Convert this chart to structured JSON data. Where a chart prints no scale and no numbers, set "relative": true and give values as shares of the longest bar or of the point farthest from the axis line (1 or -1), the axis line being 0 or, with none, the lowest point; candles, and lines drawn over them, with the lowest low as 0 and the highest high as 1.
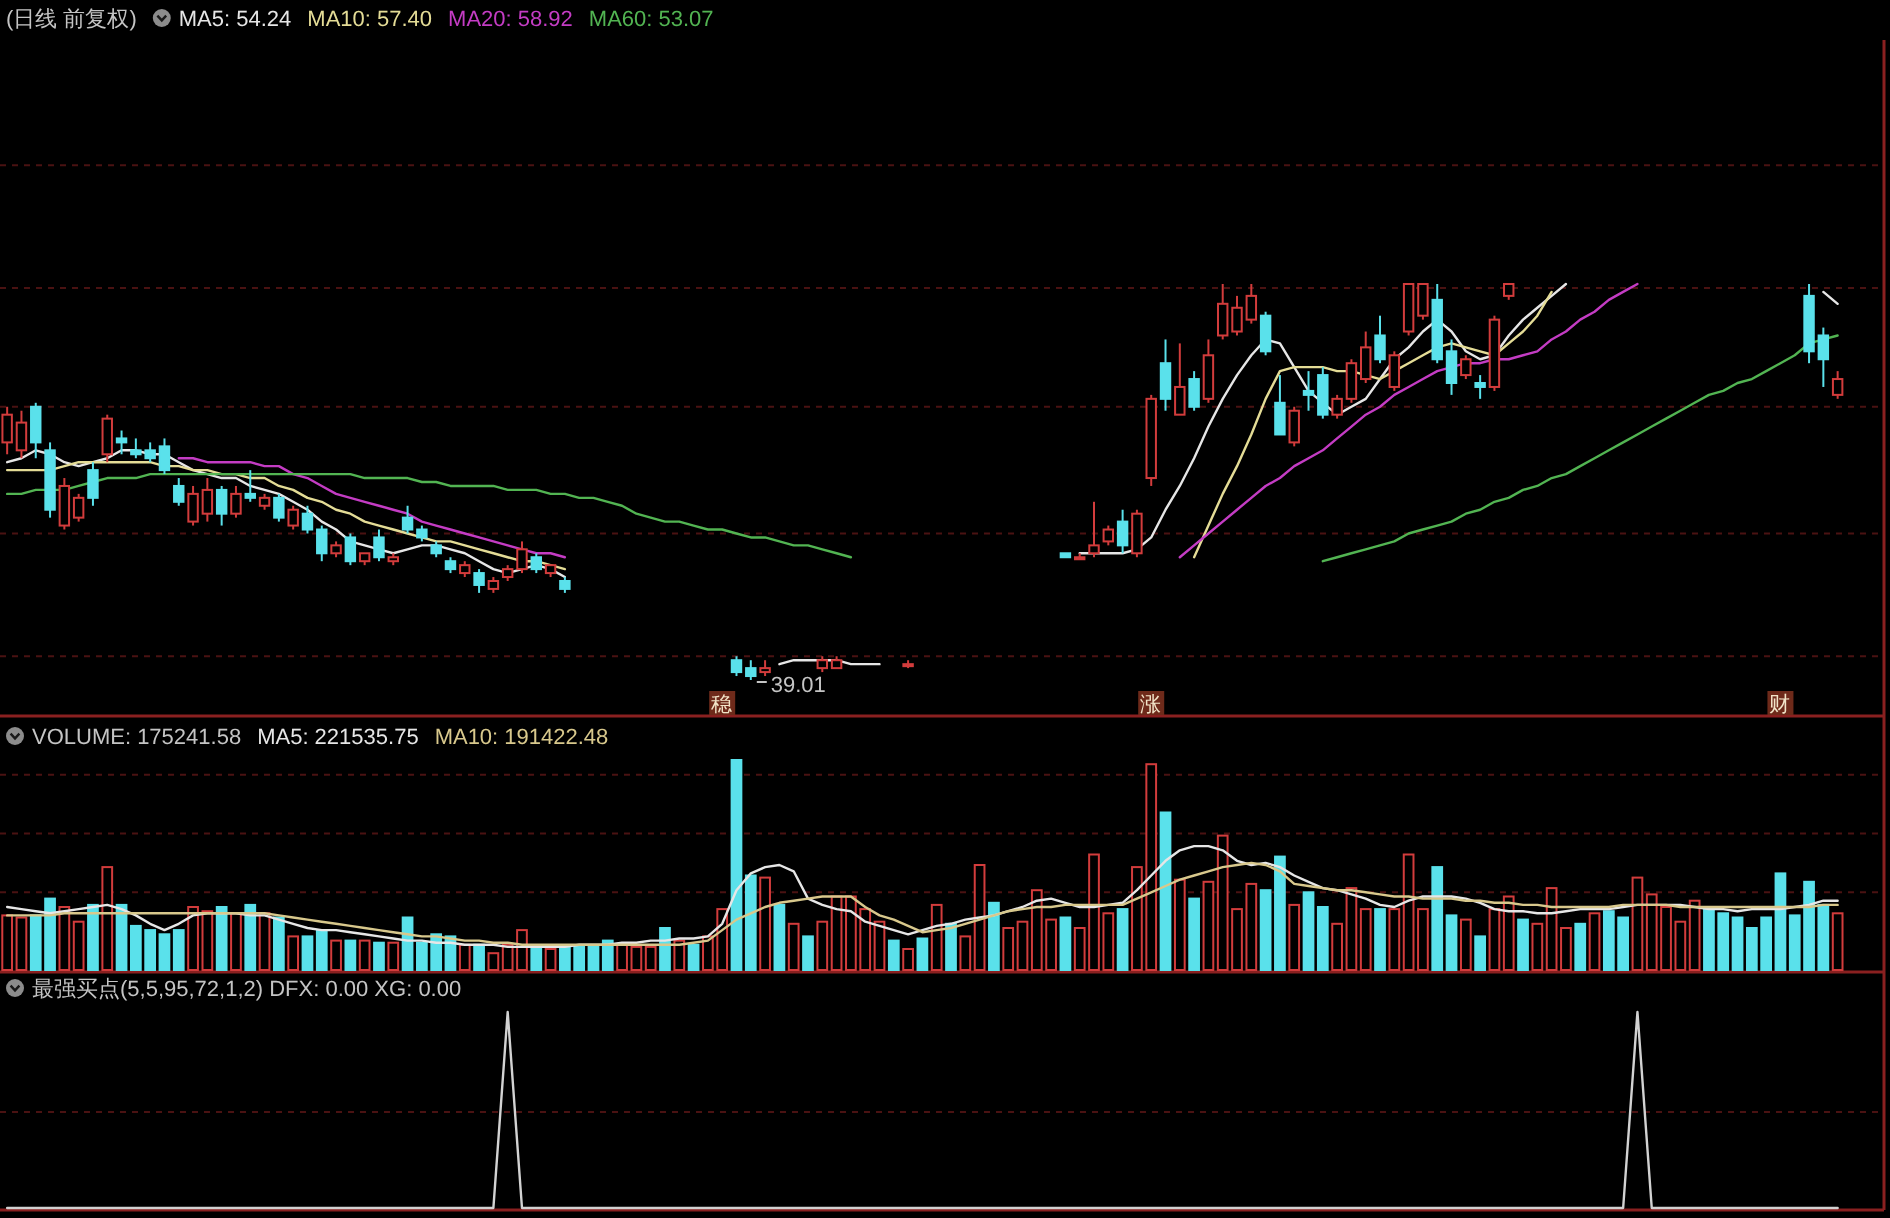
{
  "chart_data": [
    {
      "type": "candlestick",
      "title": "(日线 前复权)",
      "relative": true,
      "legend": "top left",
      "categories": [
        null,
        null,
        null,
        null,
        null,
        null,
        null,
        null,
        null,
        null,
        null,
        null,
        null,
        null,
        null,
        null,
        null,
        null,
        null,
        null,
        null,
        null,
        null,
        null,
        null,
        null,
        null,
        null,
        null,
        null,
        null,
        null,
        null,
        null,
        null,
        null,
        null,
        null,
        null,
        null,
        null,
        null,
        null,
        null,
        null,
        null,
        null,
        null,
        null,
        null,
        "稳",
        null,
        null,
        null,
        null,
        null,
        null,
        null,
        null,
        null,
        null,
        null,
        null,
        null,
        null,
        null,
        null,
        null,
        null,
        null,
        null,
        null,
        null,
        null,
        null,
        null,
        null,
        null,
        null,
        null,
        "涨",
        null,
        null,
        null,
        null,
        null,
        null,
        null,
        null,
        null,
        null,
        null,
        null,
        null,
        null,
        null,
        null,
        null,
        null,
        null,
        null,
        null,
        null,
        null,
        null,
        null,
        null,
        null,
        null,
        null,
        null,
        null,
        null,
        null,
        null,
        null,
        null,
        null,
        null,
        null,
        null,
        null,
        null,
        null,
        "财",
        null,
        null,
        null,
        null
      ],
      "ohlc": [
        [
          0.6,
          0.69,
          0.57,
          0.67
        ],
        [
          0.58,
          0.68,
          0.56,
          0.65
        ],
        [
          0.69,
          0.7,
          0.56,
          0.6
        ],
        [
          0.58,
          0.6,
          0.41,
          0.43
        ],
        [
          0.39,
          0.51,
          0.38,
          0.49
        ],
        [
          0.41,
          0.47,
          0.4,
          0.46
        ],
        [
          0.53,
          0.55,
          0.44,
          0.46
        ],
        [
          0.57,
          0.67,
          0.55,
          0.66
        ],
        [
          0.61,
          0.63,
          0.57,
          0.6
        ],
        [
          0.58,
          0.61,
          0.56,
          0.57
        ],
        [
          0.58,
          0.6,
          0.55,
          0.56
        ],
        [
          0.59,
          0.61,
          0.52,
          0.53
        ],
        [
          0.49,
          0.51,
          0.44,
          0.45
        ],
        [
          0.4,
          0.49,
          0.39,
          0.47
        ],
        [
          0.42,
          0.51,
          0.4,
          0.48
        ],
        [
          0.48,
          0.49,
          0.39,
          0.42
        ],
        [
          0.42,
          0.49,
          0.41,
          0.47
        ],
        [
          0.47,
          0.53,
          0.45,
          0.46
        ],
        [
          0.44,
          0.47,
          0.43,
          0.46
        ],
        [
          0.46,
          0.47,
          0.4,
          0.41
        ],
        [
          0.39,
          0.44,
          0.38,
          0.43
        ],
        [
          0.42,
          0.44,
          0.37,
          0.38
        ],
        [
          0.38,
          0.39,
          0.3,
          0.32
        ],
        [
          0.32,
          0.35,
          0.31,
          0.34
        ],
        [
          0.36,
          0.37,
          0.29,
          0.3
        ],
        [
          0.3,
          0.32,
          0.29,
          0.32
        ],
        [
          0.36,
          0.38,
          0.3,
          0.31
        ],
        [
          0.3,
          0.32,
          0.29,
          0.31
        ],
        [
          0.41,
          0.44,
          0.37,
          0.38
        ],
        [
          0.38,
          0.39,
          0.35,
          0.36
        ],
        [
          0.34,
          0.35,
          0.31,
          0.32
        ],
        [
          0.3,
          0.31,
          0.27,
          0.28
        ],
        [
          0.27,
          0.3,
          0.26,
          0.29
        ],
        [
          0.27,
          0.28,
          0.22,
          0.24
        ],
        [
          0.23,
          0.26,
          0.22,
          0.25
        ],
        [
          0.26,
          0.29,
          0.25,
          0.28
        ],
        [
          0.28,
          0.35,
          0.27,
          0.33
        ],
        [
          0.31,
          0.32,
          0.27,
          0.28
        ],
        [
          0.27,
          0.29,
          0.26,
          0.29
        ],
        [
          0.25,
          0.26,
          0.22,
          0.23
        ],
        null,
        null,
        null,
        null,
        null,
        null,
        null,
        null,
        null,
        null,
        null,
        [
          0.05,
          0.06,
          0.01,
          0.02
        ],
        [
          0.03,
          0.05,
          0,
          0.01
        ],
        [
          0.02,
          0.05,
          0.01,
          0.03
        ],
        null,
        null,
        null,
        [
          0.03,
          0.06,
          0.02,
          0.05
        ],
        [
          0.03,
          0.06,
          0.03,
          0.05
        ],
        null,
        null,
        null,
        null,
        [
          0.04,
          0.05,
          0.03,
          0.04
        ],
        null,
        null,
        null,
        null,
        null,
        null,
        null,
        null,
        null,
        null,
        [
          0.32,
          0.32,
          0.31,
          0.31
        ],
        [
          0.31,
          0.32,
          0.31,
          0.31
        ],
        [
          0.32,
          0.45,
          0.31,
          0.34
        ],
        [
          0.35,
          0.39,
          0.34,
          0.38
        ],
        [
          0.4,
          0.43,
          0.32,
          0.34
        ],
        [
          0.32,
          0.43,
          0.31,
          0.42
        ],
        [
          0.51,
          0.72,
          0.49,
          0.71
        ],
        [
          0.8,
          0.86,
          0.68,
          0.71
        ],
        [
          0.67,
          0.85,
          0.67,
          0.74
        ],
        [
          0.76,
          0.78,
          0.68,
          0.69
        ],
        [
          0.71,
          0.86,
          0.7,
          0.82
        ],
        [
          0.87,
          1.0,
          0.86,
          0.95
        ],
        [
          0.88,
          0.97,
          0.87,
          0.94
        ],
        [
          0.91,
          1.0,
          0.9,
          0.97
        ],
        [
          0.92,
          0.93,
          0.82,
          0.83
        ],
        [
          0.7,
          0.77,
          0.62,
          0.62
        ],
        [
          0.6,
          0.69,
          0.59,
          0.68
        ],
        [
          0.73,
          0.78,
          0.68,
          0.72
        ],
        [
          0.77,
          0.79,
          0.66,
          0.67
        ],
        [
          0.67,
          0.72,
          0.66,
          0.71
        ],
        [
          0.71,
          0.81,
          0.7,
          0.8
        ],
        [
          0.76,
          0.88,
          0.75,
          0.84
        ],
        [
          0.87,
          0.92,
          0.8,
          0.81
        ],
        [
          0.74,
          0.83,
          0.73,
          0.82
        ],
        [
          0.88,
          1.0,
          0.87,
          1.0
        ],
        [
          0.92,
          1.0,
          0.91,
          1.0
        ],
        [
          0.96,
          1.0,
          0.8,
          0.81
        ],
        [
          0.83,
          0.86,
          0.72,
          0.75
        ],
        [
          0.77,
          0.82,
          0.76,
          0.81
        ],
        [
          0.75,
          0.77,
          0.71,
          0.74
        ],
        [
          0.74,
          0.92,
          0.73,
          0.91
        ],
        [
          0.97,
          1.0,
          0.96,
          1.0
        ],
        null,
        null,
        null,
        null,
        null,
        null,
        null,
        null,
        null,
        null,
        null,
        null,
        null,
        null,
        null,
        null,
        null,
        null,
        null,
        null,
        [
          0.97,
          1.0,
          0.8,
          0.83
        ],
        [
          0.87,
          0.89,
          0.74,
          0.81
        ],
        [
          0.72,
          0.78,
          0.71,
          0.76
        ]
      ],
      "colors": [
        "#d23c3c",
        "#d23c3c",
        "#5ae1eb",
        "#5ae1eb",
        "#d23c3c",
        "#d23c3c",
        "#5ae1eb",
        "#d23c3c",
        "#5ae1eb",
        "#5ae1eb",
        "#5ae1eb",
        "#5ae1eb",
        "#5ae1eb",
        "#d23c3c",
        "#d23c3c",
        "#5ae1eb",
        "#d23c3c",
        "#5ae1eb",
        "#d23c3c",
        "#5ae1eb",
        "#d23c3c",
        "#5ae1eb",
        "#5ae1eb",
        "#d23c3c",
        "#5ae1eb",
        "#d23c3c",
        "#5ae1eb",
        "#d23c3c",
        "#5ae1eb",
        "#5ae1eb",
        "#5ae1eb",
        "#5ae1eb",
        "#d23c3c",
        "#5ae1eb",
        "#d23c3c",
        "#d23c3c",
        "#d23c3c",
        "#5ae1eb",
        "#d23c3c",
        "#5ae1eb",
        null,
        null,
        null,
        null,
        null,
        null,
        null,
        null,
        null,
        null,
        null,
        "#5ae1eb",
        "#5ae1eb",
        "#d23c3c",
        null,
        null,
        null,
        "#d23c3c",
        "#d23c3c",
        null,
        null,
        null,
        null,
        "#d23c3c",
        null,
        null,
        null,
        null,
        null,
        null,
        null,
        null,
        null,
        null,
        "#5ae1eb",
        "#d23c3c",
        "#d23c3c",
        "#d23c3c",
        "#5ae1eb",
        "#d23c3c",
        "#d23c3c",
        "#5ae1eb",
        "#d23c3c",
        "#5ae1eb",
        "#d23c3c",
        "#d23c3c",
        "#d23c3c",
        "#d23c3c",
        "#5ae1eb",
        "#5ae1eb",
        "#d23c3c",
        "#5ae1eb",
        "#5ae1eb",
        "#d23c3c",
        "#d23c3c",
        "#d23c3c",
        "#5ae1eb",
        "#d23c3c",
        "#d23c3c",
        "#d23c3c",
        "#5ae1eb",
        "#5ae1eb",
        "#d23c3c",
        "#5ae1eb",
        "#d23c3c",
        "#d23c3c",
        null,
        null,
        null,
        null,
        null,
        null,
        null,
        null,
        null,
        null,
        null,
        null,
        null,
        null,
        null,
        null,
        null,
        null,
        null,
        null,
        "#5ae1eb",
        "#5ae1eb",
        "#d23c3c"
      ],
      "series": [
        {
          "name": "MA5: 54.24",
          "type": "line",
          "color": "#e6e6e6",
          "values": [
            0.55,
            0.56,
            0.58,
            0.57,
            0.55,
            0.54,
            0.55,
            0.56,
            0.58,
            0.58,
            0.57,
            0.57,
            0.55,
            0.53,
            0.52,
            0.51,
            0.51,
            0.49,
            0.48,
            0.47,
            0.45,
            0.43,
            0.4,
            0.38,
            0.35,
            0.34,
            0.33,
            0.32,
            0.33,
            0.34,
            0.34,
            0.33,
            0.32,
            0.3,
            0.28,
            0.27,
            0.28,
            0.29,
            0.28,
            0.26,
            null,
            null,
            null,
            null,
            null,
            null,
            null,
            null,
            null,
            null,
            null,
            null,
            null,
            null,
            0.04,
            0.05,
            0.05,
            0.05,
            0.05,
            0.04,
            0.04,
            0.04,
            null,
            null,
            null,
            null,
            null,
            null,
            null,
            null,
            null,
            null,
            null,
            null,
            null,
            0.32,
            0.32,
            0.32,
            0.32,
            0.33,
            0.36,
            0.43,
            0.49,
            0.56,
            0.64,
            0.71,
            0.77,
            0.82,
            0.86,
            0.85,
            0.79,
            0.73,
            0.7,
            0.67,
            0.69,
            0.71,
            0.76,
            0.81,
            0.84,
            0.88,
            0.91,
            0.88,
            0.83,
            0.81,
            0.82,
            0.87,
            0.91,
            0.94,
            0.97,
            1.0,
            null,
            null,
            null,
            null,
            null,
            null,
            null,
            null,
            null,
            null,
            null,
            null,
            null,
            null,
            null,
            null,
            null,
            0.98,
            0.95
          ]
        },
        {
          "name": "MA10: 57.40",
          "type": "line",
          "color": "#e4dc96",
          "values": [
            0.53,
            0.53,
            0.53,
            0.53,
            0.54,
            0.55,
            0.55,
            0.55,
            0.55,
            0.55,
            0.55,
            0.54,
            0.54,
            0.53,
            0.53,
            0.52,
            0.52,
            0.51,
            0.51,
            0.49,
            0.48,
            0.46,
            0.45,
            0.43,
            0.42,
            0.4,
            0.39,
            0.38,
            0.37,
            0.36,
            0.35,
            0.35,
            0.34,
            0.33,
            0.32,
            0.31,
            0.3,
            0.3,
            0.29,
            0.28,
            null,
            null,
            null,
            null,
            null,
            null,
            null,
            null,
            null,
            null,
            null,
            null,
            null,
            null,
            null,
            null,
            null,
            null,
            null,
            null,
            null,
            null,
            null,
            null,
            null,
            null,
            null,
            null,
            null,
            null,
            null,
            null,
            null,
            null,
            null,
            null,
            null,
            null,
            null,
            null,
            null,
            null,
            null,
            0.31,
            0.39,
            0.47,
            0.54,
            0.62,
            0.71,
            0.78,
            0.79,
            0.79,
            0.79,
            0.78,
            0.78,
            0.77,
            0.76,
            0.78,
            0.8,
            0.82,
            0.84,
            0.85,
            0.84,
            0.83,
            0.82,
            0.85,
            0.88,
            0.92,
            0.98,
            null,
            null,
            null,
            null,
            null,
            null,
            null,
            null,
            null,
            null,
            null,
            null,
            null,
            null,
            null,
            null,
            null,
            null,
            null,
            null
          ]
        },
        {
          "name": "MA20: 58.92",
          "type": "line",
          "color": "#c43cc4",
          "values": [
            null,
            null,
            null,
            null,
            null,
            null,
            null,
            null,
            null,
            null,
            null,
            null,
            0.56,
            0.56,
            0.55,
            0.55,
            0.55,
            0.55,
            0.54,
            0.54,
            0.52,
            0.51,
            0.49,
            0.47,
            0.46,
            0.45,
            0.44,
            0.43,
            0.42,
            0.4,
            0.39,
            0.38,
            0.37,
            0.36,
            0.35,
            0.34,
            0.33,
            0.32,
            0.32,
            0.31,
            null,
            null,
            null,
            null,
            null,
            null,
            null,
            null,
            null,
            null,
            null,
            null,
            null,
            null,
            null,
            null,
            null,
            null,
            null,
            null,
            null,
            null,
            null,
            null,
            null,
            null,
            null,
            null,
            null,
            null,
            null,
            null,
            null,
            null,
            null,
            null,
            null,
            null,
            null,
            null,
            null,
            null,
            0.31,
            0.34,
            0.37,
            0.4,
            0.43,
            0.46,
            0.49,
            0.51,
            0.54,
            0.56,
            0.58,
            0.61,
            0.64,
            0.67,
            0.69,
            0.72,
            0.74,
            0.76,
            0.78,
            0.79,
            0.8,
            0.8,
            0.81,
            0.81,
            0.82,
            0.83,
            0.86,
            0.88,
            0.91,
            0.93,
            0.96,
            0.98,
            1.0,
            null,
            null,
            null,
            null,
            null,
            null,
            null,
            null,
            null,
            null,
            null,
            null,
            null,
            null
          ]
        },
        {
          "name": "MA60: 53.07",
          "type": "line",
          "color": "#52b452",
          "values": [
            0.47,
            0.47,
            0.48,
            0.48,
            0.48,
            0.49,
            0.5,
            0.51,
            0.51,
            0.51,
            0.52,
            0.52,
            0.52,
            0.52,
            0.52,
            0.52,
            0.52,
            0.52,
            0.52,
            0.52,
            0.52,
            0.52,
            0.52,
            0.52,
            0.52,
            0.51,
            0.51,
            0.51,
            0.51,
            0.5,
            0.5,
            0.49,
            0.49,
            0.49,
            0.49,
            0.48,
            0.48,
            0.48,
            0.47,
            0.47,
            0.46,
            0.46,
            0.45,
            0.44,
            0.42,
            0.41,
            0.4,
            0.4,
            0.39,
            0.38,
            0.38,
            0.37,
            0.36,
            0.36,
            0.35,
            0.34,
            0.34,
            0.33,
            0.32,
            0.31,
            null,
            null,
            null,
            null,
            null,
            null,
            null,
            null,
            null,
            null,
            null,
            null,
            null,
            null,
            null,
            null,
            null,
            null,
            null,
            null,
            null,
            null,
            null,
            null,
            null,
            null,
            null,
            null,
            null,
            null,
            null,
            null,
            0.3,
            0.31,
            0.32,
            0.33,
            0.34,
            0.35,
            0.37,
            0.38,
            0.39,
            0.4,
            0.42,
            0.43,
            0.45,
            0.46,
            0.48,
            0.49,
            0.51,
            0.52,
            0.54,
            0.56,
            0.58,
            0.6,
            0.62,
            0.64,
            0.66,
            0.68,
            0.7,
            0.72,
            0.73,
            0.75,
            0.76,
            0.78,
            0.8,
            0.82,
            0.85,
            0.86,
            0.87
          ]
        }
      ],
      "ref_lines": [
        {
          "axis": "y",
          "value": 1.3,
          "color": "#4a1212",
          "line_style": "dashed"
        },
        {
          "axis": "y",
          "value": 0.99,
          "color": "#4a1212",
          "line_style": "dashed"
        },
        {
          "axis": "y",
          "value": 0.69,
          "color": "#4a1212",
          "line_style": "dashed"
        },
        {
          "axis": "y",
          "value": 0.37,
          "color": "#4a1212",
          "line_style": "dashed"
        },
        {
          "axis": "y",
          "value": 0.06,
          "color": "#4a1212",
          "line_style": "dashed"
        }
      ],
      "annotations": [
        "39.01"
      ]
    },
    {
      "type": "bar",
      "title": "VOLUME: 175241.58",
      "relative": true,
      "legend": "top left",
      "categories": [
        null,
        null,
        null,
        null,
        null,
        null,
        null,
        null,
        null,
        null,
        null,
        null,
        null,
        null,
        null,
        null,
        null,
        null,
        null,
        null,
        null,
        null,
        null,
        null,
        null,
        null,
        null,
        null,
        null,
        null,
        null,
        null,
        null,
        null,
        null,
        null,
        null,
        null,
        null,
        null,
        null,
        null,
        null,
        null,
        null,
        null,
        null,
        null,
        null,
        null,
        null,
        null,
        null,
        null,
        null,
        null,
        null,
        null,
        null,
        null,
        null,
        null,
        null,
        null,
        null,
        null,
        null,
        null,
        null,
        null,
        null,
        null,
        null,
        null,
        null,
        null,
        null,
        null,
        null,
        null,
        null,
        null,
        null,
        null,
        null,
        null,
        null,
        null,
        null,
        null,
        null,
        null,
        null,
        null,
        null,
        null,
        null,
        null,
        null,
        null,
        null,
        null,
        null,
        null,
        null,
        null,
        null,
        null,
        null,
        null,
        null,
        null,
        null,
        null,
        null,
        null,
        null,
        null,
        null,
        null,
        null,
        null,
        null,
        null,
        null,
        null,
        null,
        null,
        null
      ],
      "ref_lines": [
        {
          "axis": "y",
          "value": 0.93,
          "color": "#4a1212",
          "line_style": "dashed"
        },
        {
          "axis": "y",
          "value": 0.65,
          "color": "#4a1212",
          "line_style": "dashed"
        },
        {
          "axis": "y",
          "value": 0.37,
          "color": "#4a1212",
          "line_style": "dashed"
        }
      ],
      "series": [
        {
          "values": [
            0.26,
            0.25,
            0.26,
            0.34,
            0.3,
            0.23,
            0.31,
            0.49,
            0.31,
            0.21,
            0.19,
            0.17,
            0.19,
            0.3,
            0.28,
            0.3,
            0.27,
            0.31,
            0.27,
            0.25,
            0.16,
            0.16,
            0.19,
            0.14,
            0.14,
            0.14,
            0.13,
            0.13,
            0.25,
            0.13,
            0.17,
            0.16,
            0.12,
            0.12,
            0.08,
            0.12,
            0.19,
            0.1,
            0.1,
            0.11,
            0.11,
            0.11,
            0.14,
            0.12,
            0.11,
            0.11,
            0.2,
            0.14,
            0.12,
            0.16,
            0.29,
            1,
            0.45,
            0.44,
            0.31,
            0.22,
            0.16,
            0.23,
            0.35,
            0.35,
            0.29,
            0.23,
            0.14,
            0.1,
            0.15,
            0.31,
            0.22,
            0.16,
            0.5,
            0.32,
            0.2,
            0.23,
            0.38,
            0.24,
            0.25,
            0.2,
            0.55,
            0.27,
            0.29,
            0.49,
            0.98,
            0.75,
            0.43,
            0.34,
            0.42,
            0.64,
            0.29,
            0.41,
            0.38,
            0.54,
            0.31,
            0.37,
            0.3,
            0.22,
            0.39,
            0.29,
            0.29,
            0.29,
            0.55,
            0.29,
            0.49,
            0.26,
            0.24,
            0.16,
            0.29,
            0.35,
            0.24,
            0.22,
            0.39,
            0.2,
            0.22,
            0.27,
            0.28,
            0.25,
            0.44,
            0.36,
            0.3,
            0.23,
            0.33,
            0.3,
            0.27,
            0.25,
            0.2,
            0.25,
            0.46,
            0.26,
            0.42,
            0.31,
            0.27
          ],
          "colors": [
            "#d23c3c",
            "#d23c3c",
            "#5ae1eb",
            "#5ae1eb",
            "#d23c3c",
            "#d23c3c",
            "#5ae1eb",
            "#d23c3c",
            "#5ae1eb",
            "#5ae1eb",
            "#5ae1eb",
            "#5ae1eb",
            "#5ae1eb",
            "#d23c3c",
            "#d23c3c",
            "#5ae1eb",
            "#d23c3c",
            "#5ae1eb",
            "#d23c3c",
            "#5ae1eb",
            "#d23c3c",
            "#5ae1eb",
            "#5ae1eb",
            "#d23c3c",
            "#5ae1eb",
            "#d23c3c",
            "#5ae1eb",
            "#d23c3c",
            "#5ae1eb",
            "#5ae1eb",
            "#5ae1eb",
            "#5ae1eb",
            "#d23c3c",
            "#5ae1eb",
            "#d23c3c",
            "#d23c3c",
            "#d23c3c",
            "#5ae1eb",
            "#d23c3c",
            "#5ae1eb",
            "#5ae1eb",
            "#5ae1eb",
            "#5ae1eb",
            "#d23c3c",
            "#d23c3c",
            "#d23c3c",
            "#5ae1eb",
            "#d23c3c",
            "#5ae1eb",
            "#d23c3c",
            "#d23c3c",
            "#5ae1eb",
            "#5ae1eb",
            "#d23c3c",
            "#5ae1eb",
            "#d23c3c",
            "#5ae1eb",
            "#d23c3c",
            "#d23c3c",
            "#d23c3c",
            "#d23c3c",
            "#d23c3c",
            "#5ae1eb",
            "#d23c3c",
            "#5ae1eb",
            "#d23c3c",
            "#5ae1eb",
            "#d23c3c",
            "#d23c3c",
            "#5ae1eb",
            "#d23c3c",
            "#d23c3c",
            "#d23c3c",
            "#d23c3c",
            "#5ae1eb",
            "#d23c3c",
            "#d23c3c",
            "#d23c3c",
            "#5ae1eb",
            "#d23c3c",
            "#d23c3c",
            "#5ae1eb",
            "#d23c3c",
            "#5ae1eb",
            "#d23c3c",
            "#d23c3c",
            "#d23c3c",
            "#d23c3c",
            "#5ae1eb",
            "#5ae1eb",
            "#d23c3c",
            "#5ae1eb",
            "#5ae1eb",
            "#d23c3c",
            "#d23c3c",
            "#d23c3c",
            "#5ae1eb",
            "#d23c3c",
            "#d23c3c",
            "#d23c3c",
            "#5ae1eb",
            "#5ae1eb",
            "#d23c3c",
            "#5ae1eb",
            "#d23c3c",
            "#d23c3c",
            "#5ae1eb",
            "#d23c3c",
            "#d23c3c",
            "#d23c3c",
            "#5ae1eb",
            "#d23c3c",
            "#5ae1eb",
            "#5ae1eb",
            "#d23c3c",
            "#d23c3c",
            "#d23c3c",
            "#d23c3c",
            "#d23c3c",
            "#5ae1eb",
            "#5ae1eb",
            "#5ae1eb",
            "#5ae1eb",
            "#5ae1eb",
            "#5ae1eb",
            "#5ae1eb",
            "#5ae1eb",
            "#5ae1eb",
            "#d23c3c"
          ]
        },
        {
          "name": "MA5: 221535.75",
          "type": "line",
          "color": "#e6e6e6",
          "values": [
            0.3,
            0.29,
            0.28,
            0.27,
            0.28,
            0.29,
            0.3,
            0.31,
            0.29,
            0.26,
            0.22,
            0.19,
            0.22,
            0.26,
            0.27,
            0.27,
            0.27,
            0.26,
            0.26,
            0.24,
            0.22,
            0.2,
            0.19,
            0.19,
            0.18,
            0.17,
            0.16,
            0.15,
            0.14,
            0.14,
            0.13,
            0.13,
            0.12,
            0.12,
            0.12,
            0.11,
            0.11,
            0.11,
            0.11,
            0.11,
            0.12,
            0.12,
            0.12,
            0.13,
            0.13,
            0.14,
            0.14,
            0.15,
            0.15,
            0.16,
            0.22,
            0.38,
            0.46,
            0.49,
            0.5,
            0.47,
            0.34,
            0.31,
            0.29,
            0.28,
            0.23,
            0.21,
            0.19,
            0.17,
            0.19,
            0.21,
            0.22,
            0.24,
            0.25,
            0.26,
            0.28,
            0.3,
            0.33,
            0.34,
            0.32,
            0.3,
            0.3,
            0.31,
            0.32,
            0.38,
            0.45,
            0.52,
            0.57,
            0.59,
            0.59,
            0.57,
            0.52,
            0.5,
            0.51,
            0.49,
            0.45,
            0.42,
            0.39,
            0.38,
            0.36,
            0.34,
            0.31,
            0.3,
            0.33,
            0.35,
            0.35,
            0.35,
            0.34,
            0.32,
            0.29,
            0.28,
            0.28,
            0.27,
            0.27,
            0.28,
            0.29,
            0.29,
            0.29,
            0.3,
            0.31,
            0.31,
            0.31,
            0.31,
            0.3,
            0.29,
            0.29,
            0.28,
            0.29,
            0.29,
            0.29,
            0.3,
            0.31,
            0.33,
            0.33
          ]
        },
        {
          "name": "MA10: 191422.48",
          "type": "line",
          "color": "#d8c88c",
          "values": [
            0.26,
            0.26,
            0.26,
            0.26,
            0.27,
            0.27,
            0.27,
            0.27,
            0.27,
            0.27,
            0.27,
            0.27,
            0.27,
            0.27,
            0.27,
            0.27,
            0.27,
            0.27,
            0.27,
            0.26,
            0.25,
            0.24,
            0.23,
            0.22,
            0.21,
            0.2,
            0.19,
            0.18,
            0.17,
            0.16,
            0.16,
            0.15,
            0.14,
            0.14,
            0.13,
            0.13,
            0.12,
            0.12,
            0.12,
            0.12,
            0.12,
            0.12,
            0.12,
            0.12,
            0.12,
            0.12,
            0.12,
            0.12,
            0.13,
            0.14,
            0.19,
            0.24,
            0.27,
            0.3,
            0.32,
            0.33,
            0.34,
            0.35,
            0.35,
            0.35,
            0.3,
            0.26,
            0.24,
            0.21,
            0.18,
            0.19,
            0.2,
            0.22,
            0.24,
            0.26,
            0.28,
            0.29,
            0.3,
            0.3,
            0.31,
            0.31,
            0.31,
            0.31,
            0.31,
            0.34,
            0.37,
            0.4,
            0.43,
            0.45,
            0.47,
            0.49,
            0.5,
            0.51,
            0.5,
            0.47,
            0.41,
            0.4,
            0.39,
            0.38,
            0.38,
            0.37,
            0.36,
            0.35,
            0.35,
            0.34,
            0.34,
            0.34,
            0.33,
            0.33,
            0.32,
            0.32,
            0.31,
            0.31,
            0.3,
            0.3,
            0.3,
            0.3,
            0.3,
            0.31,
            0.31,
            0.31,
            0.31,
            0.3,
            0.3,
            0.3,
            0.3,
            0.3,
            0.3,
            0.3,
            0.3,
            0.3,
            0.3,
            0.31,
            0.31
          ]
        }
      ]
    },
    {
      "type": "line",
      "title": "最强买点(5,5,95,72,1,2) DFX: 0.00 XG: 0.00",
      "relative": true,
      "categories": [
        null,
        null,
        null,
        null,
        null,
        null,
        null,
        null,
        null,
        null,
        null,
        null,
        null,
        null,
        null,
        null,
        null,
        null,
        null,
        null,
        null,
        null,
        null,
        null,
        null,
        null,
        null,
        null,
        null,
        null,
        null,
        null,
        null,
        null,
        null,
        null,
        null,
        null,
        null,
        null,
        null,
        null,
        null,
        null,
        null,
        null,
        null,
        null,
        null,
        null,
        null,
        null,
        null,
        null,
        null,
        null,
        null,
        null,
        null,
        null,
        null,
        null,
        null,
        null,
        null,
        null,
        null,
        null,
        null,
        null,
        null,
        null,
        null,
        null,
        null,
        null,
        null,
        null,
        null,
        null,
        null,
        null,
        null,
        null,
        null,
        null,
        null,
        null,
        null,
        null,
        null,
        null,
        null,
        null,
        null,
        null,
        null,
        null,
        null,
        null,
        null,
        null,
        null,
        null,
        null,
        null,
        null,
        null,
        null,
        null,
        null,
        null,
        null,
        null,
        null,
        null,
        null,
        null,
        null,
        null,
        null,
        null,
        null,
        null,
        null,
        null,
        null,
        null,
        null
      ],
      "ref_lines": [
        {
          "axis": "y",
          "value": 0.49,
          "color": "#4a1212",
          "line_style": "dashed"
        }
      ],
      "series": [
        {
          "color": "#d2d2d2",
          "values": [
            0,
            0,
            0,
            0,
            0,
            0,
            0,
            0,
            0,
            0,
            0,
            0,
            0,
            0,
            0,
            0,
            0,
            0,
            0,
            0,
            0,
            0,
            0,
            0,
            0,
            0,
            0,
            0,
            0,
            0,
            0,
            0,
            0,
            0,
            0,
            1,
            0,
            0,
            0,
            0,
            0,
            0,
            0,
            0,
            0,
            0,
            0,
            0,
            0,
            0,
            0,
            0,
            0,
            0,
            0,
            0,
            0,
            0,
            0,
            0,
            0,
            0,
            0,
            0,
            0,
            0,
            0,
            0,
            0,
            0,
            0,
            0,
            0,
            0,
            0,
            0,
            0,
            0,
            0,
            0,
            0,
            0,
            0,
            0,
            0,
            0,
            0,
            0,
            0,
            0,
            0,
            0,
            0,
            0,
            0,
            0,
            0,
            0,
            0,
            0,
            0,
            0,
            0,
            0,
            0,
            0,
            0,
            0,
            0,
            0,
            0,
            0,
            0,
            0,
            1,
            0,
            0,
            0,
            0,
            0,
            0,
            0,
            0,
            0,
            0,
            0,
            0,
            0,
            0
          ]
        }
      ]
    }
  ]
}
